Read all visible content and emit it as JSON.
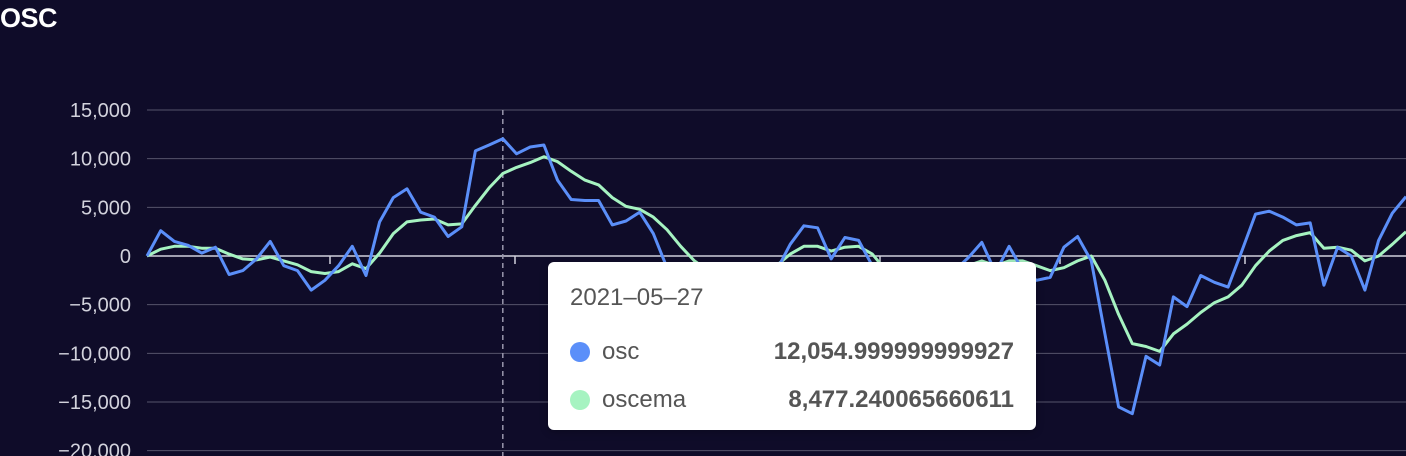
{
  "chart_data": {
    "type": "line",
    "title": "OSC",
    "ylim": [
      -20000,
      15000
    ],
    "yticks": [
      {
        "value": 15000,
        "label": "15,000"
      },
      {
        "value": 10000,
        "label": "10,000"
      },
      {
        "value": 5000,
        "label": "5,000"
      },
      {
        "value": 0,
        "label": "0"
      },
      {
        "value": -5000,
        "label": "−5,000"
      },
      {
        "value": -10000,
        "label": "−10,000"
      },
      {
        "value": -15000,
        "label": "−15,000"
      },
      {
        "value": -20000,
        "label": "−20,000"
      }
    ],
    "grid": true,
    "series": [
      {
        "name": "osc",
        "color": "#5b8ff9",
        "values": [
          0,
          2600,
          1500,
          1100,
          300,
          900,
          -1900,
          -1500,
          -300,
          1500,
          -1000,
          -1500,
          -3500,
          -2500,
          -1000,
          1000,
          -2000,
          3500,
          6000,
          6900,
          4500,
          4000,
          2000,
          3000,
          10800,
          11400,
          12055,
          10500,
          11200,
          11400,
          7800,
          5800,
          5700,
          5700,
          3200,
          3600,
          4500,
          2300,
          -1200,
          -3000,
          -5000,
          -6000,
          -5500,
          -5000,
          -4200,
          -3000,
          -1500,
          1200,
          3100,
          2900,
          -300,
          1900,
          1600,
          -1000,
          -3000,
          -5000,
          -5000,
          -3000,
          -1500,
          -1500,
          -200,
          1400,
          -1700,
          1000,
          -1500,
          -2500,
          -2200,
          900,
          2000,
          -500,
          -8000,
          -15500,
          -16200,
          -10300,
          -11200,
          -4200,
          -5200,
          -2000,
          -2700,
          -3200,
          500,
          4300,
          4600,
          4000,
          3200,
          3400,
          -3000,
          900,
          0,
          -3500,
          1600,
          4400,
          6100
        ]
      },
      {
        "name": "oscema",
        "color": "#a6f3c1",
        "values": [
          0,
          700,
          1000,
          1000,
          800,
          800,
          200,
          -300,
          -400,
          -100,
          -500,
          -900,
          -1600,
          -1800,
          -1600,
          -800,
          -1300,
          300,
          2300,
          3500,
          3700,
          3800,
          3200,
          3300,
          5200,
          7000,
          8477,
          9100,
          9600,
          10200,
          9700,
          8700,
          7800,
          7300,
          6000,
          5100,
          4800,
          4000,
          2700,
          1000,
          -500,
          -1500,
          -2500,
          -3000,
          -2800,
          -2000,
          -1000,
          200,
          1000,
          1000,
          500,
          900,
          1000,
          200,
          -1500,
          -3000,
          -3500,
          -3000,
          -2000,
          -1500,
          -1000,
          -500,
          -1000,
          -500,
          -500,
          -1000,
          -1500,
          -1200,
          -500,
          0,
          -2500,
          -6000,
          -9000,
          -9300,
          -9800,
          -8000,
          -7000,
          -5800,
          -4800,
          -4200,
          -3000,
          -1000,
          500,
          1600,
          2100,
          2400,
          800,
          900,
          600,
          -500,
          0,
          1200,
          2500
        ]
      }
    ],
    "highlight": {
      "index": 26
    }
  },
  "tooltip": {
    "date": "2021–05–27",
    "rows": [
      {
        "name": "osc",
        "value": "12,054.999999999927",
        "color": "#5b8ff9"
      },
      {
        "name": "oscema",
        "value": "8,477.240065660611",
        "color": "#a6f3c1"
      }
    ]
  }
}
